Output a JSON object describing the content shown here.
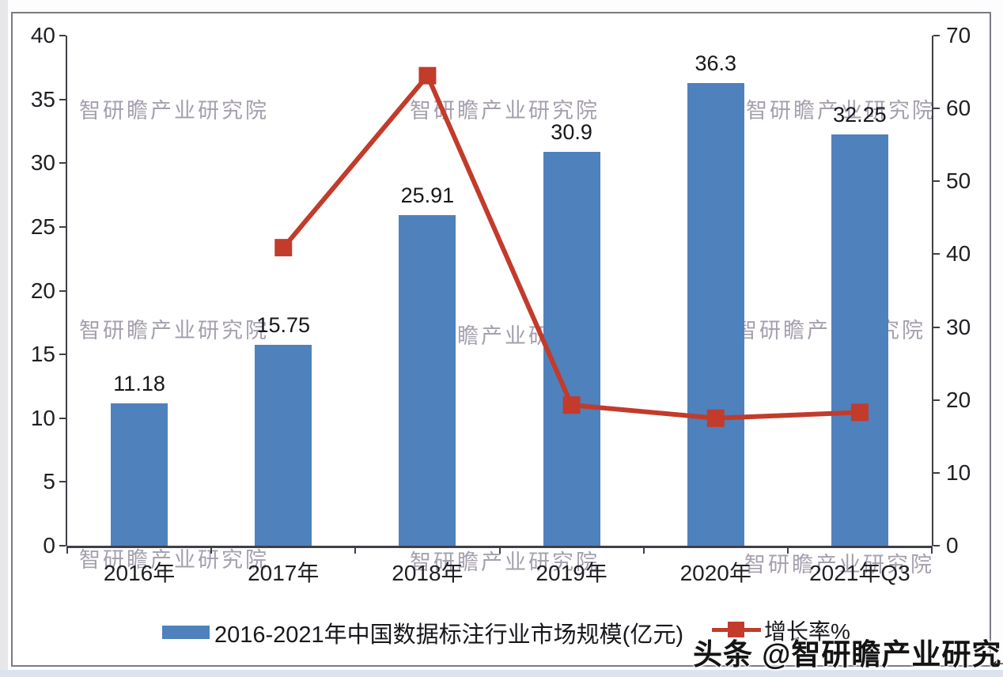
{
  "watermark": {
    "text": "智研瞻产业研究院"
  },
  "branding": {
    "toutiao_overlay": "头条 @智研瞻产业研究院",
    "arrow_glyph": "←"
  },
  "legend": {
    "bar_series_label": "2016-2021年中国数据标注行业市场规模(亿元)",
    "line_series_label": "增长率%"
  },
  "colors": {
    "bar": "#4f81bd",
    "line": "#c23b2b",
    "watermark": "#968fa0",
    "axis": "#3f3f46"
  },
  "chart_data": {
    "type": "bar",
    "subtype": "bar-with-line-overlay",
    "title": "",
    "categories": [
      "2016年",
      "2017年",
      "2018年",
      "2019年",
      "2020年",
      "2021年Q3"
    ],
    "series": [
      {
        "name": "2016-2021年中国数据标注行业市场规模(亿元)",
        "type": "bar",
        "axis": "left",
        "values": [
          11.18,
          15.75,
          25.91,
          30.9,
          36.3,
          32.25
        ],
        "labels": [
          "11.18",
          "15.75",
          "25.91",
          "30.9",
          "36.3",
          "32.25"
        ],
        "color": "#4f81bd"
      },
      {
        "name": "增长率%",
        "type": "line",
        "axis": "right",
        "values": [
          null,
          40.9,
          64.5,
          19.3,
          17.5,
          18.3
        ],
        "color": "#c23b2b",
        "marker": "square"
      }
    ],
    "axes": {
      "left": {
        "min": 0,
        "max": 40,
        "ticks": [
          0,
          5,
          10,
          15,
          20,
          25,
          30,
          35,
          40
        ]
      },
      "right": {
        "min": 0,
        "max": 70,
        "ticks": [
          0,
          10,
          20,
          30,
          40,
          50,
          60,
          70
        ]
      }
    },
    "grid": false,
    "legend_position": "bottom",
    "xlabel": "",
    "ylabel_left": "",
    "ylabel_right": ""
  }
}
